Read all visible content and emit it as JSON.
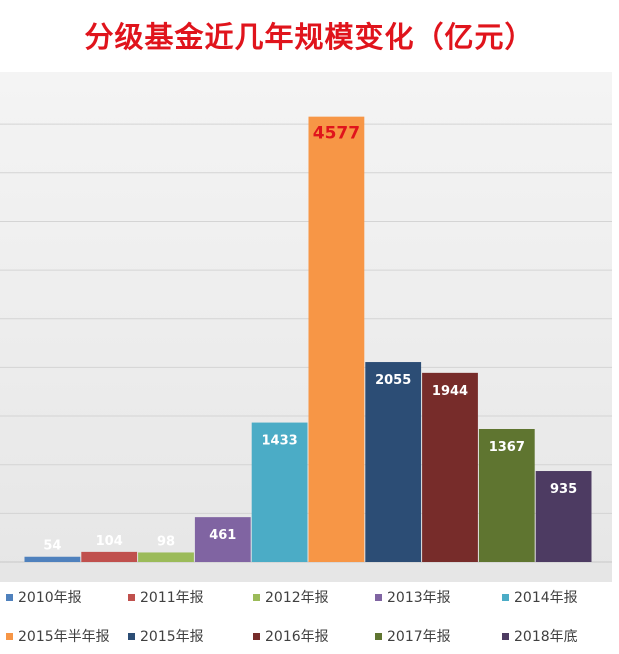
{
  "chart_data": {
    "type": "bar",
    "title": "分级基金近几年规模变化（亿元）",
    "categories": [
      "2010年报",
      "2011年报",
      "2012年报",
      "2013年报",
      "2014年报",
      "2015年半年报",
      "2015年报",
      "2016年报",
      "2017年报",
      "2018年底"
    ],
    "values": [
      54,
      104,
      98,
      461,
      1433,
      4577,
      2055,
      1944,
      1367,
      935
    ],
    "data_labels": [
      "54",
      "104",
      "98",
      "461",
      "1433",
      "4577",
      "2055",
      "1944",
      "1367",
      "935"
    ],
    "colors": [
      "#4f81bd",
      "#c0504d",
      "#9bbb59",
      "#8064a2",
      "#4bacc6",
      "#f79646",
      "#2c4d75",
      "#772c2a",
      "#5f7530",
      "#4d3b62"
    ],
    "highlight_label_color": "#e0141c",
    "xlabel": "",
    "ylabel": "",
    "ylim": [
      0,
      4500
    ],
    "grid": true,
    "legend_position": "bottom"
  }
}
